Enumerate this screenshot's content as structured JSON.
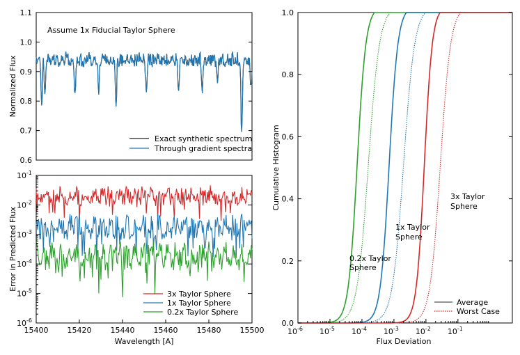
{
  "colors": {
    "black": "#000000",
    "blue": "#1f77b4",
    "red": "#d62728",
    "green": "#2ca02c",
    "exact": "#222222"
  },
  "chart_data": [
    {
      "id": "spectrum",
      "type": "line",
      "annotation": "Assume 1x Fiducial Taylor Sphere",
      "xlabel": "",
      "ylabel": "Normalized Flux",
      "xlim": [
        15400,
        15500
      ],
      "ylim": [
        0.6,
        1.1
      ],
      "yticks": [
        "0.6",
        "0.7",
        "0.8",
        "0.9",
        "1.0",
        "1.1"
      ],
      "legend_position": "bottom-right",
      "series": [
        {
          "name": "Exact synthetic spectrum",
          "color": "#222222",
          "baseline": 0.96,
          "noise": 0.035,
          "seed": 11,
          "dips": [
            [
              15402.5,
              0.16
            ],
            [
              15404,
              0.1
            ],
            [
              15418,
              0.12
            ],
            [
              15429,
              0.1
            ],
            [
              15437,
              0.15
            ],
            [
              15451,
              0.1
            ],
            [
              15466,
              0.1
            ],
            [
              15477,
              0.12
            ],
            [
              15484,
              0.1
            ],
            [
              15495.2,
              0.26
            ],
            [
              15499.5,
              0.1
            ]
          ]
        },
        {
          "name": "Through gradient spectra",
          "color": "#1f77b4",
          "baseline": 0.96,
          "noise": 0.035,
          "seed": 11,
          "dips": [
            [
              15402.5,
              0.16
            ],
            [
              15404,
              0.1
            ],
            [
              15418,
              0.12
            ],
            [
              15429,
              0.1
            ],
            [
              15437,
              0.15
            ],
            [
              15451,
              0.1
            ],
            [
              15466,
              0.1
            ],
            [
              15477,
              0.12
            ],
            [
              15484,
              0.1
            ],
            [
              15495.2,
              0.26
            ],
            [
              15499.5,
              0.1
            ]
          ]
        }
      ]
    },
    {
      "id": "error",
      "type": "line",
      "xlabel": "Wavelength [A]",
      "ylabel": "Error in Predicted Flux",
      "xlim": [
        15400,
        15500
      ],
      "xticks": [
        "15400",
        "15420",
        "15440",
        "15460",
        "15480",
        "15500"
      ],
      "ylog": true,
      "ylim_exp": [
        -6,
        -1
      ],
      "legend_position": "bottom-right",
      "series": [
        {
          "name": "3x Taylor Sphere",
          "color": "#d62728",
          "center_log": -1.7,
          "spread": 0.35,
          "seed": 3
        },
        {
          "name": "1x Taylor Sphere",
          "color": "#1f77b4",
          "center_log": -2.75,
          "spread": 0.45,
          "seed": 7
        },
        {
          "name": "0.2x Taylor Sphere",
          "color": "#2ca02c",
          "center_log": -3.75,
          "spread": 0.55,
          "seed": 13
        }
      ]
    },
    {
      "id": "cdf",
      "type": "line",
      "xlabel": "Flux Deviation",
      "ylabel": "Cumulative Histogram",
      "xlog": true,
      "xlim_exp": [
        -6,
        0.7
      ],
      "ylim": [
        0.0,
        1.0
      ],
      "yticks": [
        "0.0",
        "0.2",
        "0.4",
        "0.6",
        "0.8",
        "1.0"
      ],
      "legend_position": "bottom-right",
      "legend": [
        {
          "name": "Average",
          "style": "solid"
        },
        {
          "name": "Worst Case",
          "style": "dotted"
        }
      ],
      "series": [
        {
          "name": "0.2x Taylor Sphere",
          "label_lines": [
            "0.2x Taylor",
            "Sphere"
          ],
          "color": "#2ca02c",
          "avg_mid_log": -4.15,
          "avg_width": 0.55,
          "worst_mid_log": -3.8,
          "worst_width": 0.7
        },
        {
          "name": "1x Taylor Sphere",
          "label_lines": [
            "1x Taylor",
            "Sphere"
          ],
          "color": "#1f77b4",
          "avg_mid_log": -3.15,
          "avg_width": 0.55,
          "worst_mid_log": -2.7,
          "worst_width": 0.7
        },
        {
          "name": "3x Taylor Sphere",
          "label_lines": [
            "3x Taylor",
            "Sphere"
          ],
          "color": "#d62728",
          "avg_mid_log": -2.05,
          "avg_width": 0.5,
          "worst_mid_log": -1.55,
          "worst_width": 0.65
        }
      ]
    }
  ]
}
